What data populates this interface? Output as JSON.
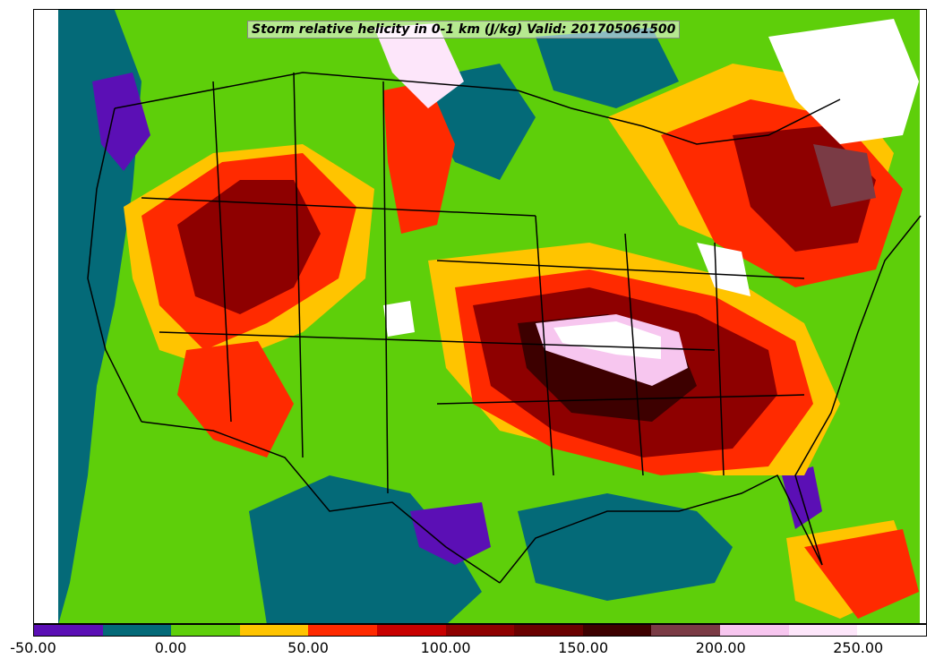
{
  "title": "Storm relative helicity in 0-1 km (J/kg) Valid: 201705061500",
  "colorbar": {
    "bins": [
      {
        "from": -50,
        "to": -25,
        "color": "#5b0fb5"
      },
      {
        "from": -25,
        "to": 0,
        "color": "#046a78"
      },
      {
        "from": 0,
        "to": 25,
        "color": "#5ecf0a"
      },
      {
        "from": 25,
        "to": 50,
        "color": "#ffc400"
      },
      {
        "from": 50,
        "to": 75,
        "color": "#ff2a00"
      },
      {
        "from": 75,
        "to": 100,
        "color": "#c80000"
      },
      {
        "from": 100,
        "to": 125,
        "color": "#8e0000"
      },
      {
        "from": 125,
        "to": 150,
        "color": "#6a0000"
      },
      {
        "from": 150,
        "to": 175,
        "color": "#3d0000"
      },
      {
        "from": 175,
        "to": 200,
        "color": "#7a3b45"
      },
      {
        "from": 200,
        "to": 225,
        "color": "#f7c6ef"
      },
      {
        "from": 225,
        "to": 250,
        "color": "#fde6fa"
      },
      {
        "from": 250,
        "to": 275,
        "color": "#ffffff"
      }
    ],
    "tick_labels": [
      "-50.00",
      "0.00",
      "50.00",
      "100.00",
      "150.00",
      "200.00",
      "250.00"
    ],
    "tick_values": [
      -50,
      0,
      50,
      100,
      150,
      200,
      250
    ],
    "range": [
      -50,
      275
    ]
  },
  "map": {
    "region": "Continental United States",
    "projection": "Lambert conformal",
    "variable": "storm relative helicity 0-1 km",
    "units": "J/kg",
    "valid_time": "201705061500",
    "background_color": "#5ecf0a",
    "features": [
      {
        "kind": "high",
        "area": "southern Plains to Ohio Valley (MO/KY/TN)",
        "level": "200-275"
      },
      {
        "kind": "high",
        "area": "southeast (AR/MS/AL/GA)",
        "level": "100-175"
      },
      {
        "kind": "high",
        "area": "northern Rockies and Great Basin",
        "level": "75-150"
      },
      {
        "kind": "high",
        "area": "New England and Great Lakes",
        "level": "200-275"
      },
      {
        "kind": "low",
        "area": "Pacific coast and Texas/Mexico",
        "level": "-50-0"
      },
      {
        "kind": "moderate",
        "area": "Gulf of Mexico and Plains",
        "level": "0-50"
      }
    ]
  }
}
